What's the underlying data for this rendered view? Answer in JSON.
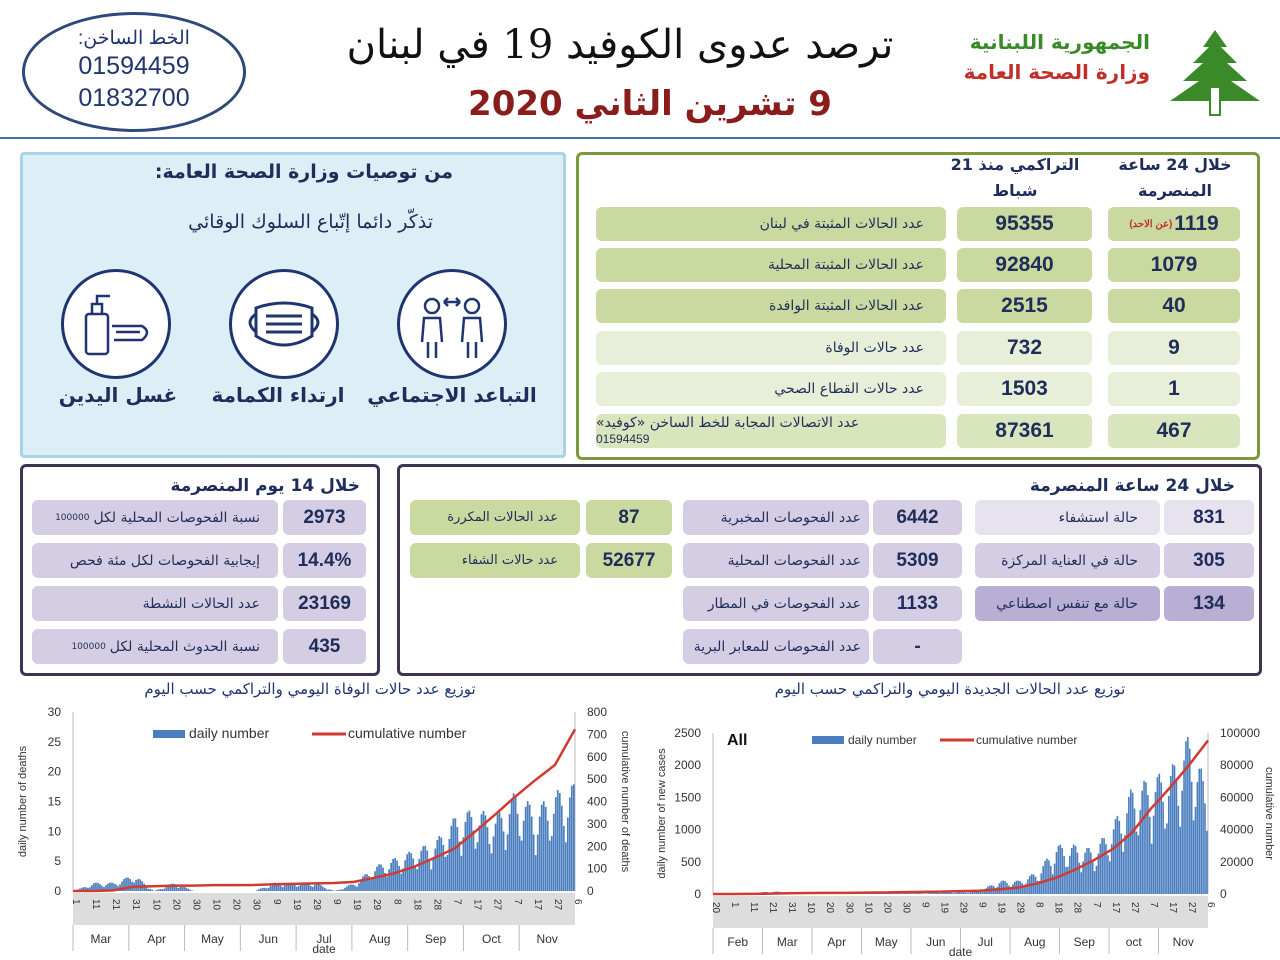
{
  "hotline": {
    "label": "الخط الساخن:",
    "numbers": [
      "01594459",
      "01832700"
    ]
  },
  "header": {
    "title": "ترصد عدوى الكوفيد 19 في لبنان",
    "date": "9 تشرين الثاني 2020",
    "logo_line1": "الجمهورية اللبنانية",
    "logo_line2": "وزارة الصحة العامة",
    "logo_icon": "cedar-tree-icon"
  },
  "recommendations": {
    "title": "من توصيات وزارة الصحة العامة:",
    "subtitle": "تذكّر دائما إتّباع السلوك الوقائي",
    "items": [
      {
        "label": "التباعد الاجتماعي",
        "icon": "social-distancing-icon"
      },
      {
        "label": "ارتداء الكمامة",
        "icon": "face-mask-icon"
      },
      {
        "label": "غسل اليدين",
        "icon": "hand-washing-icon"
      }
    ]
  },
  "summary": {
    "col_24h": "خلال 24 ساعة المنصرمة",
    "col_cum": "التراكمي منذ 21 شباط",
    "rows": [
      {
        "label": "عدد الحالات المثبتة في لبنان",
        "cum": "95355",
        "day": "1119",
        "note": "(عن الاحد)"
      },
      {
        "label": "عدد الحالات المثبتة المحلية",
        "cum": "92840",
        "day": "1079"
      },
      {
        "label": "عدد الحالات المثبتة الوافدة",
        "cum": "2515",
        "day": "40"
      },
      {
        "label": "عدد حالات الوفاة",
        "cum": "732",
        "day": "9"
      },
      {
        "label": "عدد حالات القطاع الصحي",
        "cum": "1503",
        "day": "1"
      },
      {
        "label": "عدد الاتصالات المجابة للخط الساخن «كوفيد»",
        "sub": "01594459",
        "cum": "87361",
        "day": "467"
      }
    ]
  },
  "days14": {
    "title": "خلال 14 يوم المنصرمة",
    "rows": [
      {
        "label": "نسبة الفحوصات المحلية لكل",
        "small": "100000",
        "value": "2973"
      },
      {
        "label": "إيجابية الفحوصات لكل مئة فحص",
        "value": "14.4%"
      },
      {
        "label": "عدد الحالات النشطة",
        "value": "23169"
      },
      {
        "label": "نسبة الحدوث المحلية لكل",
        "small": "100000",
        "value": "435"
      }
    ]
  },
  "hours24": {
    "title": "خلال 24 ساعة المنصرمة",
    "hospital": [
      {
        "label": "حالة استشفاء",
        "value": "831"
      },
      {
        "label": "حالة في العناية المركزة",
        "value": "305"
      },
      {
        "label": "حالة مع تنفس اصطناعي",
        "value": "134"
      }
    ],
    "tests": [
      {
        "label": "عدد الفحوصات المخبرية",
        "value": "6442"
      },
      {
        "label": "عدد الفحوصات المحلية",
        "value": "5309"
      },
      {
        "label": "عدد الفحوصات في المطار",
        "value": "1133"
      },
      {
        "label": "عدد الفحوصات للمعابر البرية",
        "value": "-"
      }
    ],
    "other": [
      {
        "label": "عدد الحالات المكررة",
        "value": "87"
      },
      {
        "label": "عدد حالات الشفاء",
        "value": "52677"
      }
    ]
  },
  "colors": {
    "green_dark": "#c9d9a0",
    "green_light": "#e8efd8",
    "purple": "#d4cde3",
    "purple_dark": "#b9aed3",
    "date_red": "#8b1c1c",
    "bar_blue": "#4a7ebf",
    "line_red": "#d03a30"
  },
  "chart_data": [
    {
      "type": "bar+line",
      "title": "توزيع عدد حالات الوفاة اليومي والتراكمي حسب اليوم",
      "xlabel": "date",
      "ylabel": "daily number of deaths",
      "y2label": "cumulative number of deaths",
      "ylim": [
        0,
        30
      ],
      "y2lim": [
        0,
        800
      ],
      "yticks": [
        "0",
        "5",
        "10",
        "15",
        "20",
        "25",
        "30"
      ],
      "y2ticks": [
        "0",
        "100",
        "200",
        "300",
        "400",
        "500",
        "600",
        "700",
        "800"
      ],
      "legend": [
        "daily number",
        "cumulative number"
      ],
      "legend_position": "top",
      "x": [
        "1",
        "11",
        "21",
        "31",
        "10",
        "20",
        "30",
        "10",
        "20",
        "30",
        "9",
        "19",
        "29",
        "9",
        "19",
        "29",
        "8",
        "18",
        "28",
        "7",
        "17",
        "27",
        "7",
        "17",
        "27",
        "6"
      ],
      "months": [
        "Mar",
        "Apr",
        "May",
        "Jun",
        "Jul",
        "Aug",
        "Sep",
        "Oct",
        "Nov"
      ],
      "series": [
        {
          "name": "daily number",
          "values": [
            0,
            1,
            1,
            2,
            0,
            1,
            0,
            0,
            0,
            0,
            1,
            1,
            1,
            0,
            1,
            3,
            4,
            5,
            6,
            9,
            10,
            9,
            12,
            10,
            12,
            13
          ]
        },
        {
          "name": "cumulative number",
          "values": [
            0,
            0,
            3,
            19,
            21,
            24,
            24,
            26,
            26,
            27,
            30,
            32,
            34,
            36,
            41,
            59,
            79,
            109,
            148,
            190,
            263,
            340,
            420,
            494,
            563,
            723
          ]
        }
      ]
    },
    {
      "type": "bar+line",
      "title": "توزيع عدد الحالات الجديدة اليومي والتراكمي حسب اليوم",
      "annotation": "All",
      "xlabel": "date",
      "ylabel": "daily number of new cases",
      "y2label": "cumulative number",
      "ylim": [
        0,
        2500
      ],
      "y2lim": [
        0,
        100000
      ],
      "yticks": [
        "0",
        "500",
        "1000",
        "1500",
        "2000",
        "2500"
      ],
      "y2ticks": [
        "0",
        "20000",
        "40000",
        "60000",
        "80000",
        "100000"
      ],
      "legend": [
        "daily number",
        "cumulative number"
      ],
      "legend_position": "top",
      "x": [
        "20",
        "1",
        "11",
        "21",
        "31",
        "10",
        "20",
        "30",
        "10",
        "20",
        "30",
        "9",
        "19",
        "29",
        "9",
        "19",
        "29",
        "8",
        "18",
        "28",
        "7",
        "17",
        "27",
        "7",
        "17",
        "27",
        "6"
      ],
      "months": [
        "Feb",
        "Mar",
        "Apr",
        "May",
        "Jun",
        "Jul",
        "Aug",
        "Sep",
        "oct",
        "Nov"
      ],
      "series": [
        {
          "name": "daily number",
          "values": [
            0,
            0,
            10,
            30,
            20,
            10,
            5,
            5,
            10,
            20,
            20,
            10,
            20,
            20,
            40,
            150,
            150,
            250,
            550,
            550,
            500,
            800,
            1200,
            1300,
            1400,
            1800,
            1119
          ]
        },
        {
          "name": "cumulative number",
          "values": [
            0,
            0,
            60,
            250,
            470,
            620,
            680,
            720,
            880,
            960,
            1170,
            1300,
            1500,
            1800,
            2000,
            2900,
            3900,
            6500,
            10000,
            15000,
            21000,
            28000,
            38000,
            53000,
            66000,
            80000,
            95355
          ]
        }
      ]
    }
  ]
}
